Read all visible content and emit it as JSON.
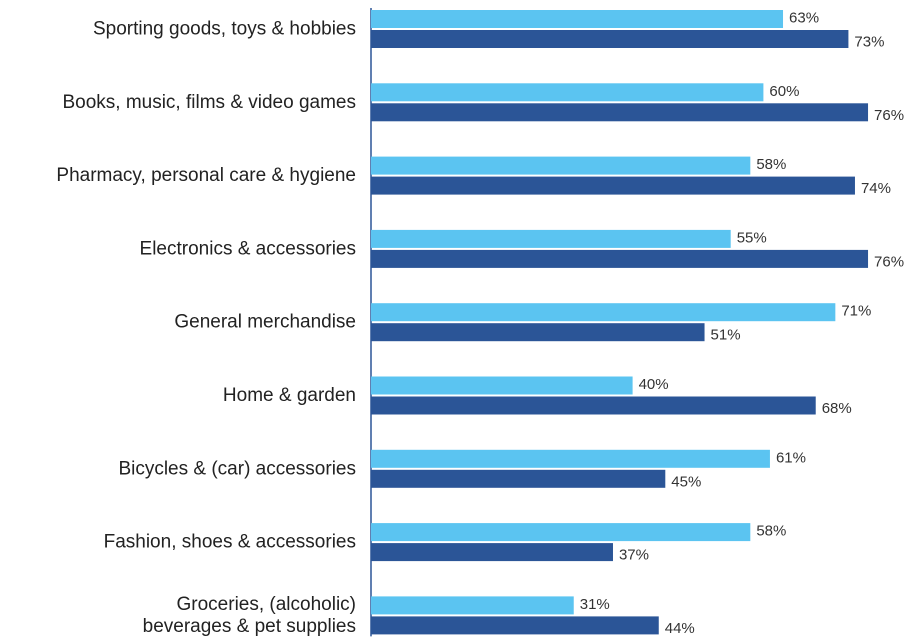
{
  "chart_data": {
    "type": "bar",
    "orientation": "horizontal",
    "categories": [
      [
        "Sporting goods, toys & hobbies"
      ],
      [
        "Books, music, films & video games"
      ],
      [
        "Pharmacy, personal care & hygiene"
      ],
      [
        "Electronics & accessories"
      ],
      [
        "General merchandise"
      ],
      [
        "Home & garden"
      ],
      [
        "Bicycles & (car) accessories"
      ],
      [
        "Fashion, shoes & accessories"
      ],
      [
        "Groceries, (alcoholic)",
        "beverages & pet supplies"
      ]
    ],
    "series": [
      {
        "color": "#5bc4f1",
        "values": [
          63,
          60,
          58,
          55,
          71,
          40,
          61,
          58,
          31
        ],
        "labels": [
          "63%",
          "60%",
          "58%",
          "55%",
          "71%",
          "40%",
          "61%",
          "58%",
          "31%"
        ]
      },
      {
        "color": "#2b5597",
        "values": [
          73,
          76,
          74,
          76,
          51,
          68,
          45,
          37,
          44
        ],
        "labels": [
          "73%",
          "76%",
          "74%",
          "76%",
          "51%",
          "68%",
          "45%",
          "37%",
          "44%"
        ]
      }
    ],
    "value_unit": "%",
    "xlim": [
      0,
      100
    ],
    "grid": false,
    "legend": "none",
    "title": "",
    "xlabel": "",
    "ylabel": ""
  }
}
